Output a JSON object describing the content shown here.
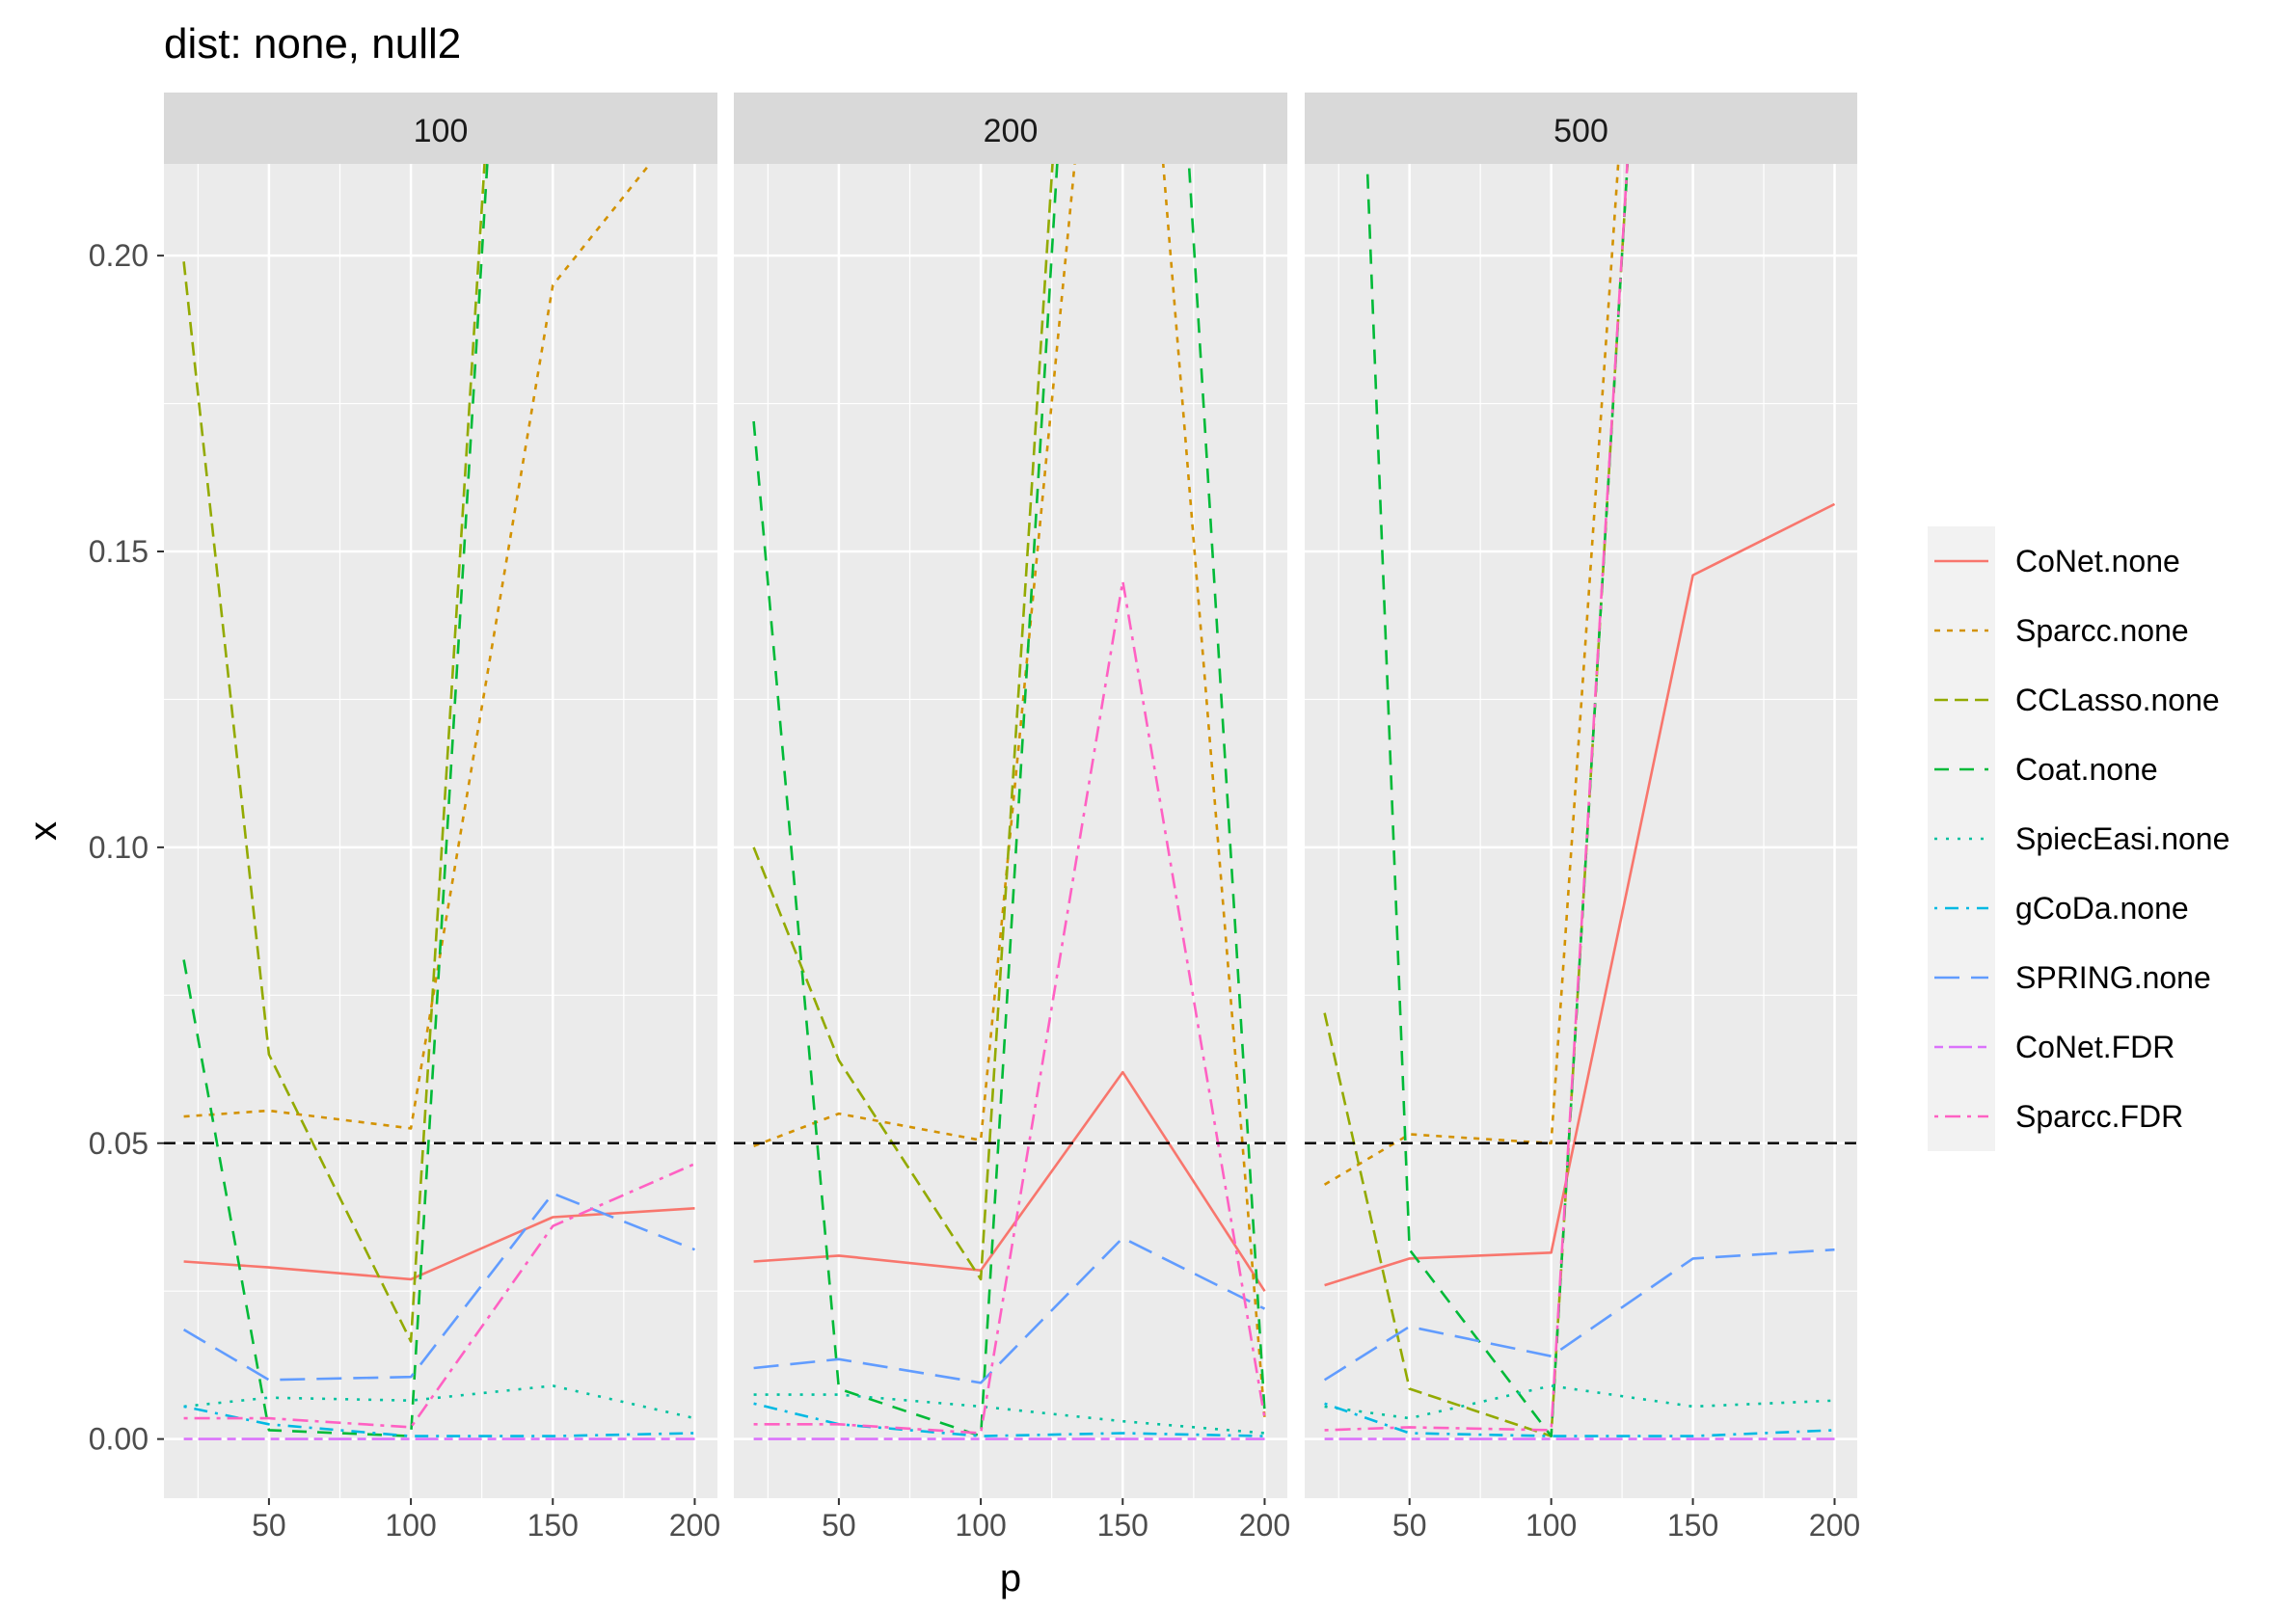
{
  "chart_data": {
    "type": "line",
    "title": "dist: none, null2",
    "xlabel": "p",
    "ylabel": "x",
    "facet_labels": [
      "100",
      "200",
      "500"
    ],
    "x_ticks": [
      50,
      100,
      150,
      200
    ],
    "x_tick_labels": [
      "50",
      "100",
      "150",
      "200"
    ],
    "y_ticks": [
      0,
      0.05,
      0.1,
      0.15,
      0.2
    ],
    "y_tick_labels": [
      "0.00",
      "0.05",
      "0.10",
      "0.15",
      "0.20"
    ],
    "xlim": [
      13,
      208
    ],
    "ylim": [
      -0.01,
      0.2155
    ],
    "x": [
      20,
      50,
      100,
      150,
      200
    ],
    "reference_line": {
      "y": 0.05,
      "style": "dashed",
      "color": "#000000"
    },
    "grid": true,
    "legend_position": "right",
    "series": [
      {
        "name": "CoNet.none",
        "color": "#F8766D",
        "dash": "solid",
        "values": [
          [
            0.03,
            0.029,
            0.027,
            0.0375,
            0.039
          ],
          [
            0.03,
            0.031,
            0.0285,
            0.062,
            0.025
          ],
          [
            0.026,
            0.0305,
            0.0315,
            0.146,
            0.158
          ]
        ]
      },
      {
        "name": "Sparcc.none",
        "color": "#D39200",
        "dash": "short",
        "values": [
          [
            0.0545,
            0.0555,
            0.0525,
            0.195,
            0.225
          ],
          [
            0.0495,
            0.055,
            0.0505,
            0.3,
            0.0035
          ],
          [
            0.043,
            0.0515,
            0.05,
            0.4,
            0.4
          ]
        ]
      },
      {
        "name": "CCLasso.none",
        "color": "#93AA00",
        "dash": "medium",
        "values": [
          [
            0.199,
            0.065,
            0.0165,
            0.4,
            0.4
          ],
          [
            0.1,
            0.064,
            0.027,
            0.4,
            0.4
          ],
          [
            0.072,
            0.0085,
            0.0005,
            0.4,
            0.4
          ]
        ]
      },
      {
        "name": "Coat.none",
        "color": "#00BA38",
        "dash": "medium-gap",
        "values": [
          [
            0.081,
            0.0015,
            0.0005,
            0.4,
            0.4
          ],
          [
            0.172,
            0.0085,
            0.0005,
            0.4,
            0.0045
          ],
          [
            0.4,
            0.032,
            0.0005,
            0.4,
            0.4
          ]
        ]
      },
      {
        "name": "SpiecEasi.none",
        "color": "#00C19F",
        "dash": "dotted",
        "values": [
          [
            0.0055,
            0.007,
            0.0065,
            0.009,
            0.0035
          ],
          [
            0.0075,
            0.0075,
            0.0055,
            0.003,
            0.001
          ],
          [
            0.0055,
            0.0035,
            0.009,
            0.0055,
            0.0065
          ]
        ]
      },
      {
        "name": "gCoDa.none",
        "color": "#00B9E3",
        "dash": "dotdash",
        "values": [
          [
            0.0055,
            0.0025,
            0.0005,
            0.0005,
            0.001
          ],
          [
            0.006,
            0.0025,
            0.0005,
            0.001,
            0.0005
          ],
          [
            0.006,
            0.001,
            0.0005,
            0.0005,
            0.0015
          ]
        ]
      },
      {
        "name": "SPRING.none",
        "color": "#619CFF",
        "dash": "long",
        "values": [
          [
            0.0185,
            0.01,
            0.0105,
            0.0415,
            0.032
          ],
          [
            0.012,
            0.0135,
            0.0095,
            0.034,
            0.022
          ],
          [
            0.01,
            0.019,
            0.014,
            0.0305,
            0.032
          ]
        ]
      },
      {
        "name": "CoNet.FDR",
        "color": "#DB72FB",
        "dash": "twodash",
        "values": [
          [
            0.0,
            0.0,
            0.0,
            0.0,
            0.0
          ],
          [
            0.0,
            0.0,
            0.0,
            0.0,
            0.0
          ],
          [
            0.0,
            0.0,
            0.0,
            0.0,
            0.0
          ]
        ]
      },
      {
        "name": "Sparcc.FDR",
        "color": "#FF61C3",
        "dash": "dashdot",
        "values": [
          [
            0.0035,
            0.0035,
            0.002,
            0.036,
            0.0465
          ],
          [
            0.0025,
            0.0025,
            0.001,
            0.145,
            0.0035
          ],
          [
            0.0015,
            0.002,
            0.0015,
            0.4,
            0.4
          ]
        ]
      }
    ]
  }
}
